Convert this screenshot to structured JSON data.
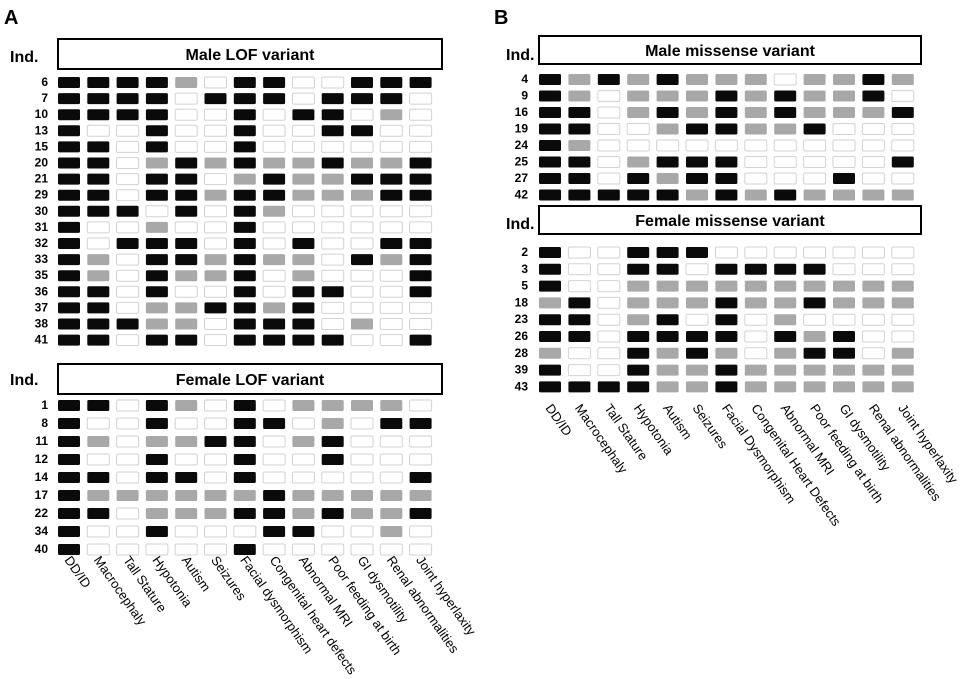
{
  "panels": [
    {
      "letter": "A",
      "columns": [
        "DD/ID",
        "Macrocephaly",
        "Tall Stature",
        "Hypotonia",
        "Autism",
        "Seizures",
        "Facial dysmorphism",
        "Congenital heart defects",
        "Abnormal MRI",
        "Poor feeding at birth",
        "GI dysmotility",
        "Renal abnormalities",
        "Joint hyperlaxity"
      ],
      "groups": [
        {
          "row_header": "Ind.",
          "title": "Male LOF variant",
          "individuals": [
            "6",
            "7",
            "10",
            "13",
            "15",
            "20",
            "21",
            "29",
            "30",
            "31",
            "32",
            "33",
            "35",
            "36",
            "37",
            "38",
            "41"
          ],
          "cells": [
            "BBBBGWBBWWBBB",
            "BBBBWBBBWBBBW",
            "BBBBWWBWBBWGW",
            "BWWBWWBWWBBWW",
            "BBWBWWBWWWWWW",
            "BBWGBGBGGBGGB",
            "BBWBBWGBGGBBB",
            "BBWBBGBBGGGBB",
            "BBBWBWBGWWWWW",
            "BWWGWWBWWWWWW",
            "BWBBBWBWBWWBB",
            "BGWBBGBGGWBGB",
            "BGWBGGBWGWWWB",
            "BBWBWWBWBBWWB",
            "BBWGGBBGBWWWW",
            "BBBGGWBBBWGWW",
            "BBWBBWBBBBWWB"
          ]
        },
        {
          "row_header": "Ind.",
          "title": "Female LOF variant",
          "individuals": [
            "1",
            "8",
            "11",
            "12",
            "14",
            "17",
            "22",
            "34",
            "40"
          ],
          "cells": [
            "BBWBGWBWGGGGW",
            "BWWBWWBBWGWBB",
            "BGWGGBBWGBWWW",
            "BWWBWWBWWBWWW",
            "BBWBBWBWWWWWB",
            "BGGGGGGBGGGGG",
            "BBWGGGBBGBGGB",
            "BWWBWWWBBWWGW",
            "BWWWWWBWWWWWW"
          ]
        }
      ]
    },
    {
      "letter": "B",
      "columns": [
        "DD/ID",
        "Macrocephaly",
        "Tall Stature",
        "Hypotonia",
        "Autism",
        "Seizures",
        "Facial Dysmorphism",
        "Congenital Heart Defects",
        "Abnormal MRI",
        "Poor feeding at birth",
        "GI dysmotility",
        "Renal abnormalities",
        "Joint hyperlaxity"
      ],
      "groups": [
        {
          "row_header": "Ind.",
          "title": "Male missense variant",
          "individuals": [
            "4",
            "9",
            "16",
            "19",
            "24",
            "25",
            "27",
            "42"
          ],
          "cells": [
            "BGBGBGGGWGGBG",
            "BGWGGGBGBGGBW",
            "BBWGBGBGBGGGB",
            "BBWWGBBGGBWWW",
            "BGWWWWWWWWWWW",
            "BBWGBBBWWWWWB",
            "BBWBGBBWWWBWW",
            "BBBBBGBGBGGGG"
          ]
        },
        {
          "row_header": "Ind.",
          "title": "Female missense variant",
          "individuals": [
            "2",
            "3",
            "5",
            "18",
            "23",
            "26",
            "28",
            "39",
            "43"
          ],
          "cells": [
            "BWWBBBWWWWWWW",
            "BWWBBWBBBBWWW",
            "BWWGGGGGGGGGG",
            "GBWGGGBGGBGGG",
            "BBWGBWBWGWWWW",
            "BBWBBBBWBGBWW",
            "GWWBGBGWGBBWG",
            "BWWBGGBGGGGGG",
            "BBBBGGBGGGGGG"
          ]
        }
      ]
    }
  ],
  "colors": {
    "B": "#0a0a0a",
    "G": "#a8a8a8",
    "W": "#ffffff"
  }
}
